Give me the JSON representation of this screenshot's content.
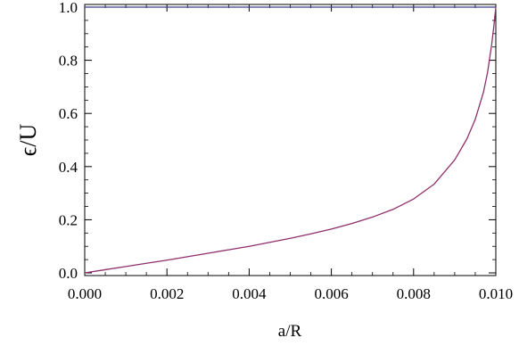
{
  "chart_data": {
    "type": "line",
    "title": "",
    "xlabel": "a/R",
    "ylabel": "ϵ/U",
    "xlim": [
      0,
      0.01
    ],
    "ylim": [
      -0.01,
      1.01
    ],
    "x_ticks": [
      "0.000",
      "0.002",
      "0.004",
      "0.006",
      "0.008",
      "0.010"
    ],
    "y_ticks": [
      "0.0",
      "0.2",
      "0.4",
      "0.6",
      "0.8",
      "1.0"
    ],
    "grid": false,
    "series": [
      {
        "color": "#3b3a8c",
        "x": [
          0,
          0.01
        ],
        "y": [
          1.0,
          1.0
        ]
      },
      {
        "color": "#8e2f6b",
        "x": [
          0,
          0.0005,
          0.001,
          0.0015,
          0.002,
          0.0025,
          0.003,
          0.0035,
          0.004,
          0.0045,
          0.005,
          0.0055,
          0.006,
          0.0065,
          0.007,
          0.0075,
          0.008,
          0.0085,
          0.009,
          0.0093,
          0.0095,
          0.0097,
          0.0098,
          0.0099,
          0.00995,
          0.01
        ],
        "y": [
          0.0,
          0.012,
          0.024,
          0.036,
          0.048,
          0.061,
          0.074,
          0.087,
          0.1,
          0.115,
          0.13,
          0.147,
          0.165,
          0.186,
          0.21,
          0.239,
          0.278,
          0.334,
          0.425,
          0.505,
          0.578,
          0.68,
          0.755,
          0.86,
          0.925,
          1.0
        ]
      }
    ]
  }
}
